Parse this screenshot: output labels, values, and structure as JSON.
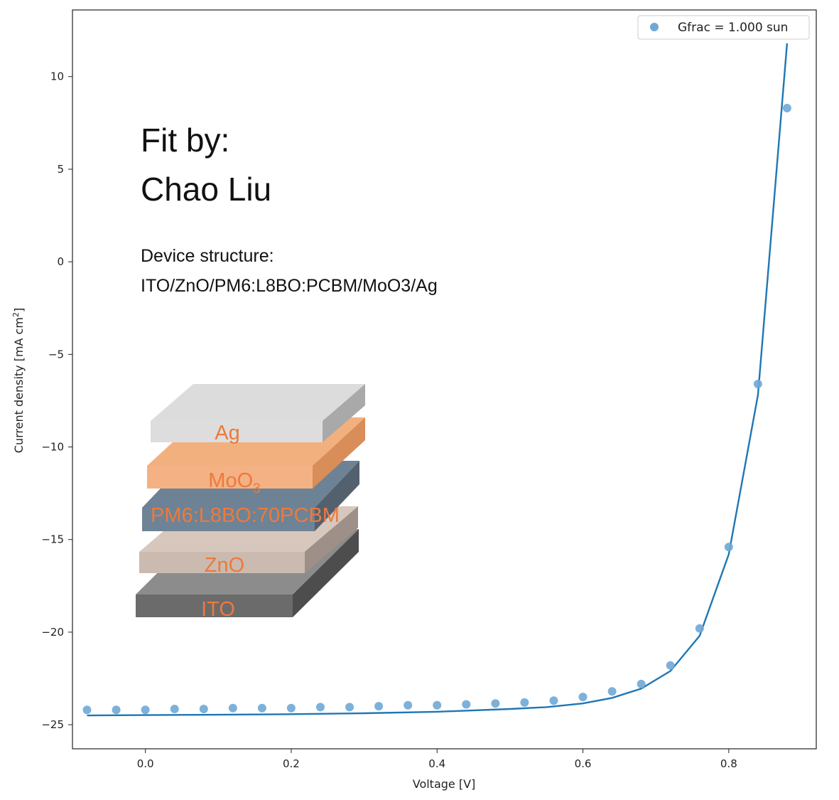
{
  "chart_data": {
    "type": "scatter",
    "title": "",
    "xlabel": "Voltage [V]",
    "ylabel": "Current density [mA cm",
    "ylabel_sup": "2",
    "ylabel_close": "]",
    "xlim": [
      -0.1,
      0.92
    ],
    "ylim": [
      -26.3,
      13.6
    ],
    "xticks": [
      0.0,
      0.2,
      0.4,
      0.6,
      0.8
    ],
    "xtick_labels": [
      "0.0",
      "0.2",
      "0.4",
      "0.6",
      "0.8"
    ],
    "yticks": [
      10,
      5,
      0,
      -5,
      -10,
      -15,
      -20,
      -25
    ],
    "ytick_labels": [
      "10",
      "5",
      "0",
      "−5",
      "−10",
      "−15",
      "−20",
      "−25"
    ],
    "grid": false,
    "legend_position": "top-right",
    "series": [
      {
        "name": "Gfrac = 1.000 sun",
        "kind": "markers",
        "color": "#6fa8d6",
        "x": [
          -0.08,
          -0.04,
          0.0,
          0.04,
          0.08,
          0.12,
          0.16,
          0.2,
          0.24,
          0.28,
          0.32,
          0.36,
          0.4,
          0.44,
          0.48,
          0.52,
          0.56,
          0.6,
          0.64,
          0.68,
          0.72,
          0.76,
          0.8,
          0.84,
          0.88
        ],
        "y": [
          -24.2,
          -24.2,
          -24.2,
          -24.15,
          -24.15,
          -24.1,
          -24.1,
          -24.1,
          -24.05,
          -24.05,
          -24.0,
          -23.95,
          -23.95,
          -23.9,
          -23.85,
          -23.8,
          -23.7,
          -23.5,
          -23.2,
          -22.8,
          -21.8,
          -19.8,
          -15.4,
          -6.6,
          8.3
        ]
      },
      {
        "name": "",
        "kind": "line",
        "color": "#1f77b4",
        "x": [
          -0.08,
          0.0,
          0.1,
          0.2,
          0.3,
          0.4,
          0.5,
          0.55,
          0.6,
          0.64,
          0.68,
          0.72,
          0.76,
          0.8,
          0.84,
          0.88
        ],
        "y": [
          -24.5,
          -24.48,
          -24.46,
          -24.43,
          -24.38,
          -24.3,
          -24.15,
          -24.05,
          -23.85,
          -23.55,
          -23.05,
          -22.1,
          -20.2,
          -15.8,
          -7.2,
          11.8
        ]
      }
    ],
    "annotations": [
      "Fit by:",
      "Chao Liu",
      "Device structure:",
      "ITO/ZnO/PM6:L8BO:PCBM/MoO3/Ag"
    ]
  },
  "device_stack": {
    "layers": [
      {
        "label": "Ag",
        "sub": "",
        "top": "#dcdcdc",
        "front": "#dddddd",
        "side": "#a9a9a9"
      },
      {
        "label": "MoO",
        "sub": "3",
        "top": "#f3b07f",
        "front": "#f4b184",
        "side": "#d98d58"
      },
      {
        "label": "PM6:L8BO:70PCBM",
        "sub": "",
        "top": "#6d8294",
        "front": "#6e8396",
        "side": "#53616f"
      },
      {
        "label": "ZnO",
        "sub": "",
        "top": "#d7c7bd",
        "front": "#cbbab0",
        "side": "#9e9088"
      },
      {
        "label": "ITO",
        "sub": "",
        "top": "#8c8c8c",
        "front": "#6b6b6b",
        "side": "#4d4d4d"
      }
    ]
  }
}
